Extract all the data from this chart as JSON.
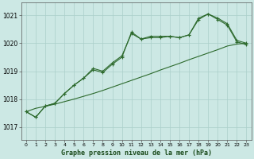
{
  "title": "Graphe pression niveau de la mer (hPa)",
  "background_color": "#cce8e4",
  "grid_color": "#aacfca",
  "line_color": "#2d6a2d",
  "x_ticks": [
    0,
    1,
    2,
    3,
    4,
    5,
    6,
    7,
    8,
    9,
    10,
    11,
    12,
    13,
    14,
    15,
    16,
    17,
    18,
    19,
    20,
    21,
    22,
    23
  ],
  "y_ticks": [
    1017,
    1018,
    1019,
    1020,
    1021
  ],
  "ylim": [
    1016.55,
    1021.45
  ],
  "xlim": [
    -0.5,
    23.5
  ],
  "series1": [
    1017.55,
    1017.35,
    1017.75,
    1017.85,
    1018.2,
    1018.5,
    1018.75,
    1019.1,
    1019.0,
    1019.3,
    1019.55,
    1020.35,
    1020.15,
    1020.2,
    1020.2,
    1020.25,
    1020.2,
    1020.3,
    1020.9,
    1021.05,
    1020.85,
    1020.65,
    1020.05,
    1019.95
  ],
  "series2": [
    1017.55,
    1017.35,
    1017.75,
    1017.85,
    1018.2,
    1018.5,
    1018.75,
    1019.05,
    1018.95,
    1019.25,
    1019.5,
    1020.4,
    1020.15,
    1020.25,
    1020.25,
    1020.25,
    1020.2,
    1020.3,
    1020.85,
    1021.05,
    1020.9,
    1020.7,
    1020.1,
    1020.0
  ],
  "series_linear": [
    1017.55,
    1017.67,
    1017.74,
    1017.82,
    1017.91,
    1018.0,
    1018.1,
    1018.2,
    1018.31,
    1018.43,
    1018.55,
    1018.67,
    1018.79,
    1018.91,
    1019.04,
    1019.16,
    1019.28,
    1019.41,
    1019.53,
    1019.65,
    1019.77,
    1019.9,
    1019.97,
    1020.0
  ]
}
